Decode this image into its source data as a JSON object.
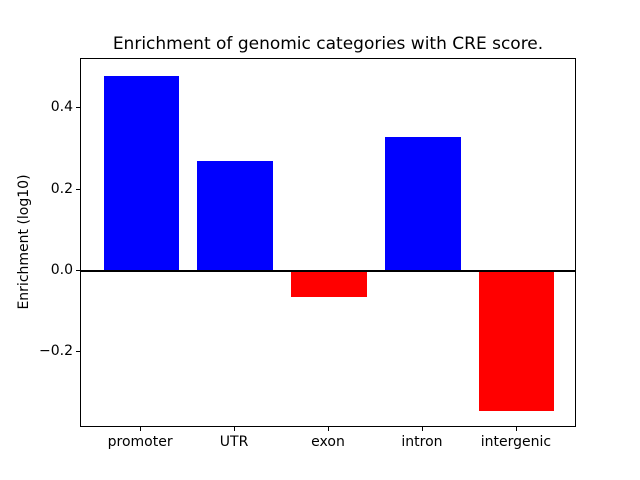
{
  "figure": {
    "background": "#ffffff",
    "frame_color": "#000000",
    "text_color": "#000000"
  },
  "chart_data": {
    "type": "bar",
    "title": "Enrichment of genomic categories with CRE score.",
    "xlabel": "",
    "ylabel": "Enrichment (log10)",
    "categories": [
      "promoter",
      "UTR",
      "exon",
      "intron",
      "intergenic"
    ],
    "values": [
      0.48,
      0.27,
      -0.065,
      0.33,
      -0.345
    ],
    "bar_colors": [
      "#0000ff",
      "#0000ff",
      "#ff0000",
      "#0000ff",
      "#ff0000"
    ],
    "positive_color": "#0000ff",
    "negative_color": "#ff0000",
    "ylim": [
      -0.386,
      0.521
    ],
    "yticks": [
      {
        "value": 0.4,
        "label": "0.4"
      },
      {
        "value": 0.2,
        "label": "0.2"
      },
      {
        "value": 0.0,
        "label": "0.0"
      },
      {
        "value": -0.2,
        "label": "−0.2"
      }
    ],
    "zero_line": {
      "value": 0.0,
      "color": "#000000",
      "thickness_px": 2
    },
    "grid": false,
    "legend": "none"
  }
}
